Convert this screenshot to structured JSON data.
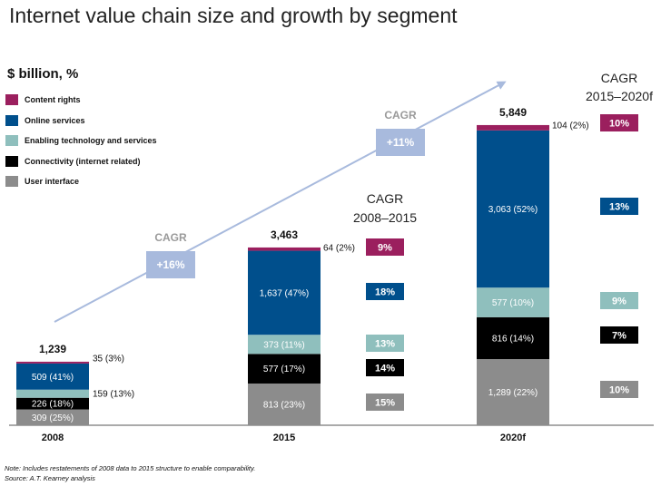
{
  "title": "Internet value chain size and growth by segment",
  "unit_label": "$ billion, %",
  "legend": [
    {
      "label": "Content rights",
      "color": "#9b1f5e"
    },
    {
      "label": "Online services",
      "color": "#004f8c"
    },
    {
      "label": "Enabling technology and services",
      "color": "#8fbfbd"
    },
    {
      "label": "Connectivity (internet related)",
      "color": "#000000"
    },
    {
      "label": "User interface",
      "color": "#8c8c8c"
    }
  ],
  "colors": {
    "content": "#9b1f5e",
    "online": "#004f8c",
    "enabling": "#8fbfbd",
    "connectivity": "#000000",
    "ui": "#8c8c8c",
    "cagr_box": "#a8badd",
    "arrow": "#a8badd"
  },
  "chart_data": {
    "type": "bar",
    "stacked": true,
    "categories": [
      "2008",
      "2015",
      "2020f"
    ],
    "totals": [
      "1,239",
      "3,463",
      "5,849"
    ],
    "series": [
      {
        "name": "User interface",
        "key": "ui",
        "values": [
          309,
          813,
          1289
        ],
        "labels": [
          "309 (25%)",
          "813 (23%)",
          "1,289 (22%)"
        ]
      },
      {
        "name": "Connectivity (internet related)",
        "key": "connectivity",
        "values": [
          226,
          577,
          816
        ],
        "labels": [
          "226 (18%)",
          "577 (17%)",
          "816 (14%)"
        ]
      },
      {
        "name": "Enabling technology and services",
        "key": "enabling",
        "values": [
          159,
          373,
          577
        ],
        "labels": [
          "159 (13%)",
          "373 (11%)",
          "577 (10%)"
        ]
      },
      {
        "name": "Online services",
        "key": "online",
        "values": [
          509,
          1637,
          3063
        ],
        "labels": [
          "509 (41%)",
          "1,637 (47%)",
          "3,063 (52%)"
        ]
      },
      {
        "name": "Content rights",
        "key": "content",
        "values": [
          35,
          64,
          104
        ],
        "labels": [
          "35 (3%)",
          "64 (2%)",
          "104 (2%)"
        ]
      }
    ],
    "overall_cagr": [
      {
        "label": "CAGR",
        "value": "+16%"
      },
      {
        "label": "CAGR",
        "value": "+11%"
      }
    ],
    "segment_cagr": [
      {
        "header": [
          "CAGR",
          "2008–2015"
        ],
        "values": [
          "9%",
          "18%",
          "13%",
          "14%",
          "15%"
        ]
      },
      {
        "header": [
          "CAGR",
          "2015–2020f"
        ],
        "values": [
          "10%",
          "13%",
          "9%",
          "7%",
          "10%"
        ]
      }
    ]
  },
  "notes": [
    "Note: Includes restatements of 2008 data to 2015 structure to enable comparability.",
    "Source: A.T. Kearney analysis"
  ]
}
